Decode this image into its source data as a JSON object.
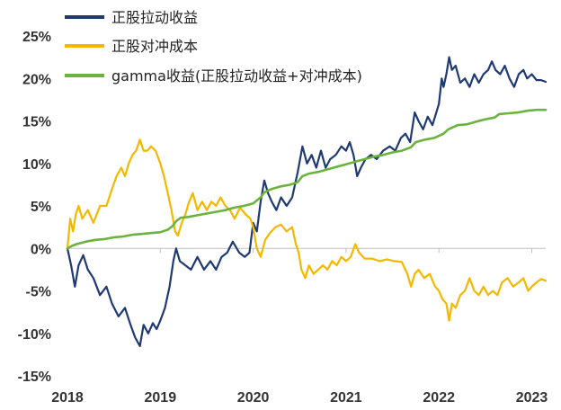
{
  "chart_data": {
    "type": "line",
    "title": "",
    "xlabel": "",
    "ylabel": "",
    "x_ticks": [
      "2018",
      "2019",
      "2020",
      "2021",
      "2022",
      "2023"
    ],
    "y_ticks": [
      "25%",
      "20%",
      "15%",
      "10%",
      "5%",
      "0%",
      "-5%",
      "-10%",
      "-15%"
    ],
    "xlim": [
      2018.0,
      2023.15
    ],
    "ylim": [
      -15,
      25
    ],
    "legend_position": "top-left",
    "grid": false,
    "series": [
      {
        "name": "正股拉动收益",
        "color": "#1f3a73",
        "points": [
          [
            2018.0,
            0
          ],
          [
            2018.04,
            -2
          ],
          [
            2018.08,
            -4.5
          ],
          [
            2018.12,
            -2
          ],
          [
            2018.17,
            -0.8
          ],
          [
            2018.22,
            -2.5
          ],
          [
            2018.28,
            -3.5
          ],
          [
            2018.35,
            -5.5
          ],
          [
            2018.42,
            -4.5
          ],
          [
            2018.48,
            -6.5
          ],
          [
            2018.55,
            -8
          ],
          [
            2018.62,
            -7
          ],
          [
            2018.68,
            -9
          ],
          [
            2018.73,
            -10.5
          ],
          [
            2018.78,
            -11.5
          ],
          [
            2018.82,
            -9
          ],
          [
            2018.87,
            -10
          ],
          [
            2018.92,
            -8.8
          ],
          [
            2018.96,
            -9.5
          ],
          [
            2019.0,
            -8.5
          ],
          [
            2019.05,
            -7
          ],
          [
            2019.1,
            -4.5
          ],
          [
            2019.14,
            -1.5
          ],
          [
            2019.17,
            0
          ],
          [
            2019.21,
            -1.5
          ],
          [
            2019.27,
            -2
          ],
          [
            2019.33,
            -2.5
          ],
          [
            2019.4,
            -1
          ],
          [
            2019.47,
            -2.5
          ],
          [
            2019.54,
            -1.5
          ],
          [
            2019.6,
            -2.5
          ],
          [
            2019.66,
            -1
          ],
          [
            2019.72,
            -0.5
          ],
          [
            2019.78,
            0.8
          ],
          [
            2019.85,
            -0.5
          ],
          [
            2019.91,
            -1
          ],
          [
            2019.96,
            -0.5
          ],
          [
            2020.0,
            3
          ],
          [
            2020.04,
            2
          ],
          [
            2020.08,
            5.5
          ],
          [
            2020.12,
            8
          ],
          [
            2020.16,
            6.5
          ],
          [
            2020.2,
            5.5
          ],
          [
            2020.25,
            4.5
          ],
          [
            2020.3,
            6
          ],
          [
            2020.36,
            5
          ],
          [
            2020.42,
            6
          ],
          [
            2020.48,
            9
          ],
          [
            2020.53,
            12
          ],
          [
            2020.58,
            10
          ],
          [
            2020.63,
            11
          ],
          [
            2020.68,
            9.5
          ],
          [
            2020.73,
            11.5
          ],
          [
            2020.78,
            9.5
          ],
          [
            2020.83,
            10.5
          ],
          [
            2020.89,
            11
          ],
          [
            2020.95,
            12
          ],
          [
            2021.0,
            11.5
          ],
          [
            2021.04,
            12.5
          ],
          [
            2021.08,
            11
          ],
          [
            2021.12,
            8.5
          ],
          [
            2021.16,
            9.5
          ],
          [
            2021.21,
            10.5
          ],
          [
            2021.27,
            11
          ],
          [
            2021.33,
            10.5
          ],
          [
            2021.4,
            11.5
          ],
          [
            2021.47,
            12
          ],
          [
            2021.53,
            11.5
          ],
          [
            2021.59,
            13
          ],
          [
            2021.64,
            13.5
          ],
          [
            2021.69,
            12.5
          ],
          [
            2021.74,
            16
          ],
          [
            2021.78,
            15
          ],
          [
            2021.83,
            14
          ],
          [
            2021.88,
            15.5
          ],
          [
            2021.93,
            14.5
          ],
          [
            2022.0,
            17
          ],
          [
            2022.03,
            20
          ],
          [
            2022.05,
            19
          ],
          [
            2022.08,
            20.5
          ],
          [
            2022.11,
            22.5
          ],
          [
            2022.14,
            21
          ],
          [
            2022.18,
            21.5
          ],
          [
            2022.23,
            19.5
          ],
          [
            2022.28,
            20
          ],
          [
            2022.33,
            19
          ],
          [
            2022.38,
            20.5
          ],
          [
            2022.43,
            19.5
          ],
          [
            2022.48,
            20.5
          ],
          [
            2022.53,
            21
          ],
          [
            2022.57,
            22
          ],
          [
            2022.61,
            21
          ],
          [
            2022.66,
            20.5
          ],
          [
            2022.71,
            21.5
          ],
          [
            2022.76,
            20
          ],
          [
            2022.81,
            19
          ],
          [
            2022.86,
            20.5
          ],
          [
            2022.91,
            21
          ],
          [
            2022.95,
            20
          ],
          [
            2023.0,
            20.5
          ],
          [
            2023.05,
            19.8
          ],
          [
            2023.1,
            19.8
          ],
          [
            2023.15,
            19.6
          ]
        ]
      },
      {
        "name": "正股对冲成本",
        "color": "#f5b800",
        "points": [
          [
            2018.0,
            0
          ],
          [
            2018.03,
            3.5
          ],
          [
            2018.06,
            2
          ],
          [
            2018.09,
            4
          ],
          [
            2018.12,
            5
          ],
          [
            2018.16,
            3.5
          ],
          [
            2018.22,
            4.5
          ],
          [
            2018.28,
            3
          ],
          [
            2018.35,
            5
          ],
          [
            2018.42,
            5
          ],
          [
            2018.48,
            7
          ],
          [
            2018.53,
            8.5
          ],
          [
            2018.58,
            9.5
          ],
          [
            2018.62,
            8.5
          ],
          [
            2018.66,
            10
          ],
          [
            2018.7,
            11
          ],
          [
            2018.74,
            11.5
          ],
          [
            2018.78,
            12.8
          ],
          [
            2018.82,
            11.5
          ],
          [
            2018.86,
            11.5
          ],
          [
            2018.9,
            12
          ],
          [
            2018.95,
            11.5
          ],
          [
            2019.0,
            10
          ],
          [
            2019.04,
            8.5
          ],
          [
            2019.08,
            6.5
          ],
          [
            2019.12,
            4.5
          ],
          [
            2019.16,
            2
          ],
          [
            2019.19,
            1.5
          ],
          [
            2019.23,
            3
          ],
          [
            2019.27,
            4
          ],
          [
            2019.31,
            5.5
          ],
          [
            2019.35,
            6.5
          ],
          [
            2019.4,
            4.5
          ],
          [
            2019.45,
            5.5
          ],
          [
            2019.5,
            4.5
          ],
          [
            2019.55,
            5.5
          ],
          [
            2019.6,
            5
          ],
          [
            2019.65,
            6
          ],
          [
            2019.7,
            5
          ],
          [
            2019.75,
            4.5
          ],
          [
            2019.8,
            3.5
          ],
          [
            2019.86,
            4.8
          ],
          [
            2019.92,
            4
          ],
          [
            2019.97,
            3.5
          ],
          [
            2020.0,
            2.5
          ],
          [
            2020.04,
            0
          ],
          [
            2020.08,
            -1
          ],
          [
            2020.13,
            1
          ],
          [
            2020.18,
            1.8
          ],
          [
            2020.24,
            2.5
          ],
          [
            2020.3,
            2.8
          ],
          [
            2020.36,
            2
          ],
          [
            2020.42,
            2.5
          ],
          [
            2020.46,
            0.5
          ],
          [
            2020.49,
            -0.5
          ],
          [
            2020.52,
            -2.5
          ],
          [
            2020.56,
            -3.5
          ],
          [
            2020.6,
            -2
          ],
          [
            2020.65,
            -3
          ],
          [
            2020.7,
            -2.5
          ],
          [
            2020.75,
            -2
          ],
          [
            2020.8,
            -2.5
          ],
          [
            2020.85,
            -1.5
          ],
          [
            2020.9,
            -2
          ],
          [
            2020.95,
            -1
          ],
          [
            2021.0,
            -1.5
          ],
          [
            2021.05,
            -1
          ],
          [
            2021.1,
            0.5
          ],
          [
            2021.14,
            -0.5
          ],
          [
            2021.2,
            -1.2
          ],
          [
            2021.28,
            -1.2
          ],
          [
            2021.36,
            -1.5
          ],
          [
            2021.44,
            -1.3
          ],
          [
            2021.52,
            -1.5
          ],
          [
            2021.6,
            -1.6
          ],
          [
            2021.66,
            -3
          ],
          [
            2021.7,
            -4.5
          ],
          [
            2021.74,
            -3
          ],
          [
            2021.78,
            -2.5
          ],
          [
            2021.84,
            -3.5
          ],
          [
            2021.9,
            -3
          ],
          [
            2021.96,
            -4.5
          ],
          [
            2022.0,
            -5
          ],
          [
            2022.04,
            -6
          ],
          [
            2022.08,
            -6.5
          ],
          [
            2022.11,
            -8.5
          ],
          [
            2022.14,
            -6.5
          ],
          [
            2022.18,
            -7
          ],
          [
            2022.23,
            -5.5
          ],
          [
            2022.28,
            -5
          ],
          [
            2022.33,
            -3.5
          ],
          [
            2022.38,
            -5
          ],
          [
            2022.43,
            -5.5
          ],
          [
            2022.48,
            -4.5
          ],
          [
            2022.53,
            -5.5
          ],
          [
            2022.58,
            -5
          ],
          [
            2022.63,
            -5.5
          ],
          [
            2022.68,
            -4
          ],
          [
            2022.74,
            -3.5
          ],
          [
            2022.8,
            -4.5
          ],
          [
            2022.86,
            -4
          ],
          [
            2022.91,
            -3.5
          ],
          [
            2022.96,
            -5
          ],
          [
            2023.0,
            -4.5
          ],
          [
            2023.05,
            -4
          ],
          [
            2023.1,
            -3.6
          ],
          [
            2023.15,
            -3.8
          ]
        ]
      },
      {
        "name": "gamma收益(正股拉动收益+对冲成本)",
        "color": "#6cb33e",
        "points": [
          [
            2018.0,
            0
          ],
          [
            2018.05,
            0.3
          ],
          [
            2018.1,
            0.5
          ],
          [
            2018.2,
            0.8
          ],
          [
            2018.3,
            1
          ],
          [
            2018.4,
            1.1
          ],
          [
            2018.5,
            1.3
          ],
          [
            2018.6,
            1.4
          ],
          [
            2018.7,
            1.6
          ],
          [
            2018.8,
            1.7
          ],
          [
            2018.9,
            1.8
          ],
          [
            2019.0,
            1.9
          ],
          [
            2019.08,
            2.2
          ],
          [
            2019.13,
            2.6
          ],
          [
            2019.17,
            3.2
          ],
          [
            2019.22,
            3.6
          ],
          [
            2019.3,
            3.7
          ],
          [
            2019.4,
            3.9
          ],
          [
            2019.5,
            4.1
          ],
          [
            2019.6,
            4.3
          ],
          [
            2019.7,
            4.5
          ],
          [
            2019.8,
            4.8
          ],
          [
            2019.9,
            5
          ],
          [
            2020.0,
            5.3
          ],
          [
            2020.08,
            6
          ],
          [
            2020.12,
            6.6
          ],
          [
            2020.2,
            7
          ],
          [
            2020.3,
            7.3
          ],
          [
            2020.4,
            7.5
          ],
          [
            2020.48,
            7.8
          ],
          [
            2020.53,
            8.5
          ],
          [
            2020.6,
            8.8
          ],
          [
            2020.7,
            9
          ],
          [
            2020.8,
            9.3
          ],
          [
            2020.9,
            9.6
          ],
          [
            2021.0,
            9.9
          ],
          [
            2021.1,
            10.2
          ],
          [
            2021.2,
            10.5
          ],
          [
            2021.3,
            10.8
          ],
          [
            2021.4,
            11
          ],
          [
            2021.5,
            11.3
          ],
          [
            2021.6,
            11.5
          ],
          [
            2021.7,
            11.9
          ],
          [
            2021.75,
            12.5
          ],
          [
            2021.85,
            12.8
          ],
          [
            2021.95,
            13
          ],
          [
            2022.05,
            13.5
          ],
          [
            2022.1,
            14
          ],
          [
            2022.2,
            14.5
          ],
          [
            2022.3,
            14.6
          ],
          [
            2022.4,
            14.9
          ],
          [
            2022.5,
            15.2
          ],
          [
            2022.6,
            15.4
          ],
          [
            2022.65,
            15.8
          ],
          [
            2022.75,
            15.9
          ],
          [
            2022.85,
            16
          ],
          [
            2022.95,
            16.2
          ],
          [
            2023.05,
            16.3
          ],
          [
            2023.15,
            16.3
          ]
        ]
      }
    ]
  }
}
